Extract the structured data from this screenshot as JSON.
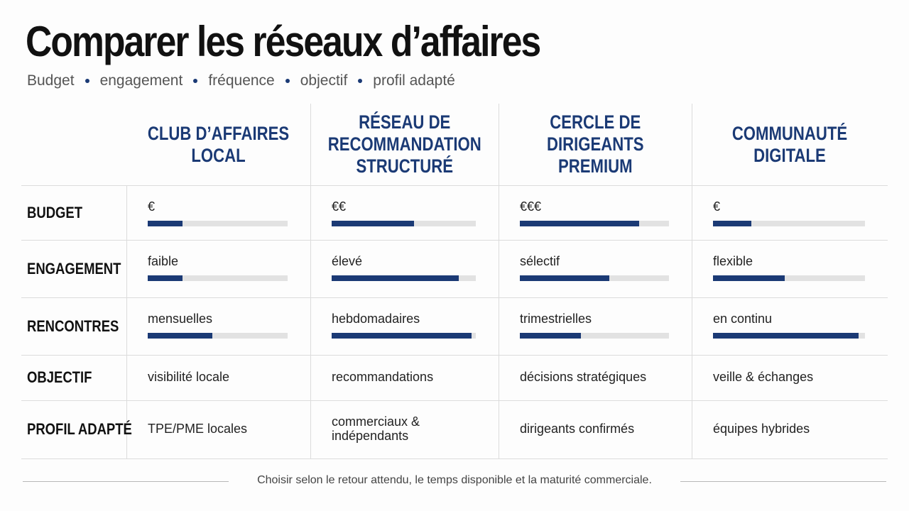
{
  "title": "Comparer les réseaux d’affaires",
  "subtitle_items": [
    "Budget",
    "engagement",
    "fréquence",
    "objectif",
    "profil adapté"
  ],
  "columns": [
    "CLUB D’AFFAIRES\nLOCAL",
    "RÉSEAU DE\nRECOMMANDATION\nSTRUCTURÉ",
    "CERCLE DE\nDIRIGEANTS\nPREMIUM",
    "COMMUNAUTÉ\nDIGITALE"
  ],
  "rows": [
    {
      "label": "BUDGET",
      "cells": [
        {
          "text": "€",
          "level": 0.25
        },
        {
          "text": "€€",
          "level": 0.57
        },
        {
          "text": "€€€",
          "level": 0.8
        },
        {
          "text": "€",
          "level": 0.25
        }
      ]
    },
    {
      "label": "ENGAGEMENT",
      "cells": [
        {
          "text": "faible",
          "level": 0.25
        },
        {
          "text": "élevé",
          "level": 0.88
        },
        {
          "text": "sélectif",
          "level": 0.6
        },
        {
          "text": "flexible",
          "level": 0.47
        }
      ]
    },
    {
      "label": "RENCONTRES",
      "cells": [
        {
          "text": "mensuelles",
          "level": 0.46
        },
        {
          "text": "hebdomadaires",
          "level": 0.97
        },
        {
          "text": "trimestrielles",
          "level": 0.41
        },
        {
          "text": "en continu",
          "level": 0.96
        }
      ]
    },
    {
      "label": "OBJECTIF",
      "cells": [
        {
          "text": "visibilité locale"
        },
        {
          "text": "recommandations"
        },
        {
          "text": "décisions stratégiques"
        },
        {
          "text": "veille & échanges"
        }
      ]
    },
    {
      "label": "PROFIL ADAPTÉ",
      "cells": [
        {
          "text": "TPE/PME locales"
        },
        {
          "text": "commerciaux & indépendants"
        },
        {
          "text": "dirigeants confirmés"
        },
        {
          "text": "équipes hybrides"
        }
      ]
    }
  ],
  "footer": "Choisir selon le retour attendu, le temps disponible et la maturité commerciale.",
  "colors": {
    "accent": "#1b3a75",
    "bar_track": "#e2e2e2"
  }
}
